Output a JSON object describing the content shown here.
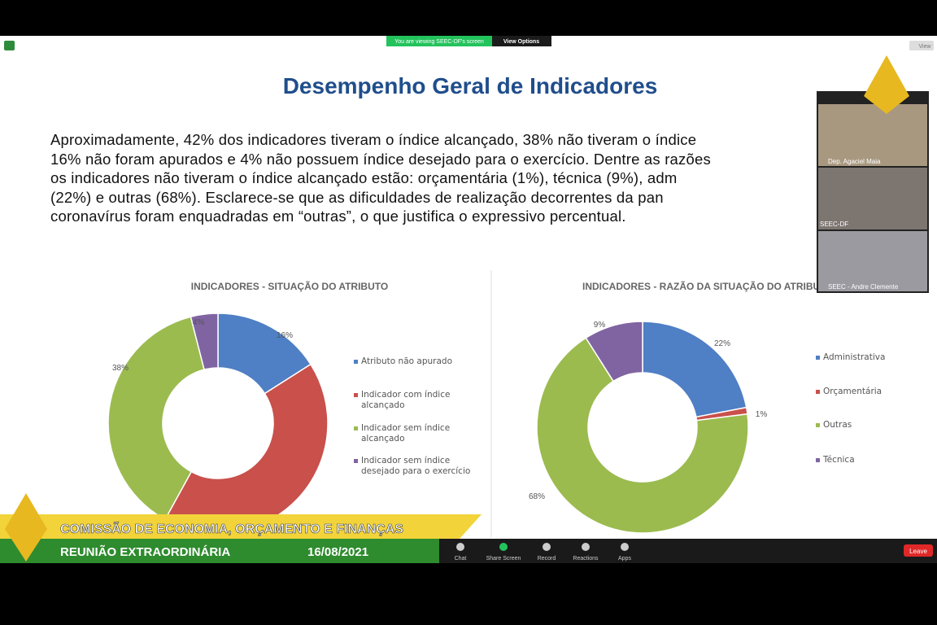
{
  "zoom": {
    "viewing_banner": "You are viewing SEEC-DF's screen",
    "view_options": "View Options",
    "view": "View",
    "toolbar": [
      "Chat",
      "Share Screen",
      "Record",
      "Reactions",
      "Apps"
    ],
    "leave": "Leave",
    "participants": [
      "Dep. Agaciel Maia",
      "SEEC-DF",
      "SEEC - Andre Clemente"
    ]
  },
  "slide": {
    "title": "Desempenho Geral de Indicadores",
    "paragraph_lines": [
      "Aproximadamente, 42% dos indicadores tiveram o índice alcançado, 38% não tiveram o índice",
      "16% não foram apurados e 4% não possuem índice desejado para o exercício. Dentre as razões",
      "os indicadores não tiveram o índice alcançado estão: orçamentária (1%), técnica (9%), adm",
      "(22%) e outras (68%). Esclarece-se que as dificuldades de realização decorrentes da pan",
      "coronavírus foram enquadradas em “outras”, o que justifica o expressivo percentual."
    ]
  },
  "chart_data": [
    {
      "type": "pie",
      "title": "INDICADORES -  SITUAÇÃO DO ATRIBUTO",
      "categories": [
        "Atributo não apurado",
        "Indicador com índice alcançado",
        "Indicador sem índice alcançado",
        "Indicador sem índice desejado para o exercício"
      ],
      "values": [
        16,
        42,
        38,
        4
      ],
      "value_labels": [
        "16%",
        null,
        "38%",
        "4%"
      ],
      "colors": [
        "#4f7fc4",
        "#c9504b",
        "#9bbb4f",
        "#8064a2"
      ]
    },
    {
      "type": "pie",
      "title": "INDICADORES -  RAZÃO DA SITUAÇÃO DO ATRIBUTO",
      "categories": [
        "Administrativa",
        "Orçamentária",
        "Outras",
        "Técnica"
      ],
      "values": [
        22,
        1,
        68,
        9
      ],
      "value_labels": [
        "22%",
        "1%",
        "68%",
        "9%"
      ],
      "colors": [
        "#4f7fc4",
        "#c9504b",
        "#9bbb4f",
        "#8064a2"
      ]
    }
  ],
  "banner": {
    "committee": "COMISSÃO DE ECONOMIA, ORÇAMENTO E FINANÇAS",
    "meeting": "REUNIÃO EXTRAORDINÁRIA",
    "date": "16/08/2021"
  }
}
